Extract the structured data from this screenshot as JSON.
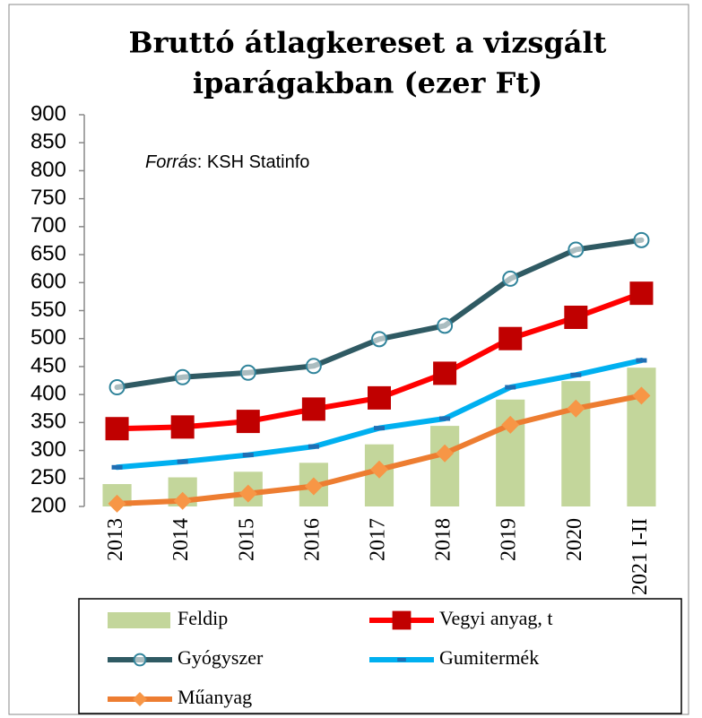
{
  "chart_data": {
    "type": "line",
    "title": [
      "Bruttó átlagkereset a vizsgált",
      "iparágakban (ezer Ft)"
    ],
    "annotation": [
      "Forrás",
      ": KSH Statinfo"
    ],
    "categories": [
      "2013",
      "2014",
      "2015",
      "2016",
      "2017",
      "2018",
      "2019",
      "2020",
      "2021 I-II"
    ],
    "ylim": [
      200,
      900
    ],
    "yticks": [
      200,
      250,
      300,
      350,
      400,
      450,
      500,
      550,
      600,
      650,
      700,
      750,
      800,
      850,
      900
    ],
    "grid": false,
    "series": [
      {
        "name": "Feldip",
        "type": "bar",
        "color": "#c3d69b",
        "values": [
          240,
          252,
          262,
          278,
          311,
          344,
          391,
          424,
          448
        ]
      },
      {
        "name": "Vegyi anyag, t",
        "type": "line",
        "marker": "square",
        "color": "#ff0000",
        "marker_color": "#c00000",
        "values": [
          339,
          342,
          352,
          374,
          394,
          438,
          500,
          538,
          581
        ]
      },
      {
        "name": "Gyógyszer",
        "type": "line",
        "marker": "circle",
        "color": "#2f5a63",
        "marker_color": "#31849b",
        "values": [
          413,
          431,
          439,
          451,
          499,
          523,
          607,
          659,
          676
        ]
      },
      {
        "name": "Gumitermék",
        "type": "line",
        "marker": "dash",
        "color": "#00b0f0",
        "marker_color": "#1f6fb4",
        "values": [
          270,
          280,
          292,
          307,
          340,
          357,
          413,
          435,
          461
        ]
      },
      {
        "name": "Műanyag",
        "type": "line",
        "marker": "diamond",
        "color": "#ed7d31",
        "marker_color": "#f79646",
        "values": [
          205,
          210,
          223,
          236,
          266,
          295,
          346,
          375,
          398
        ]
      }
    ]
  }
}
